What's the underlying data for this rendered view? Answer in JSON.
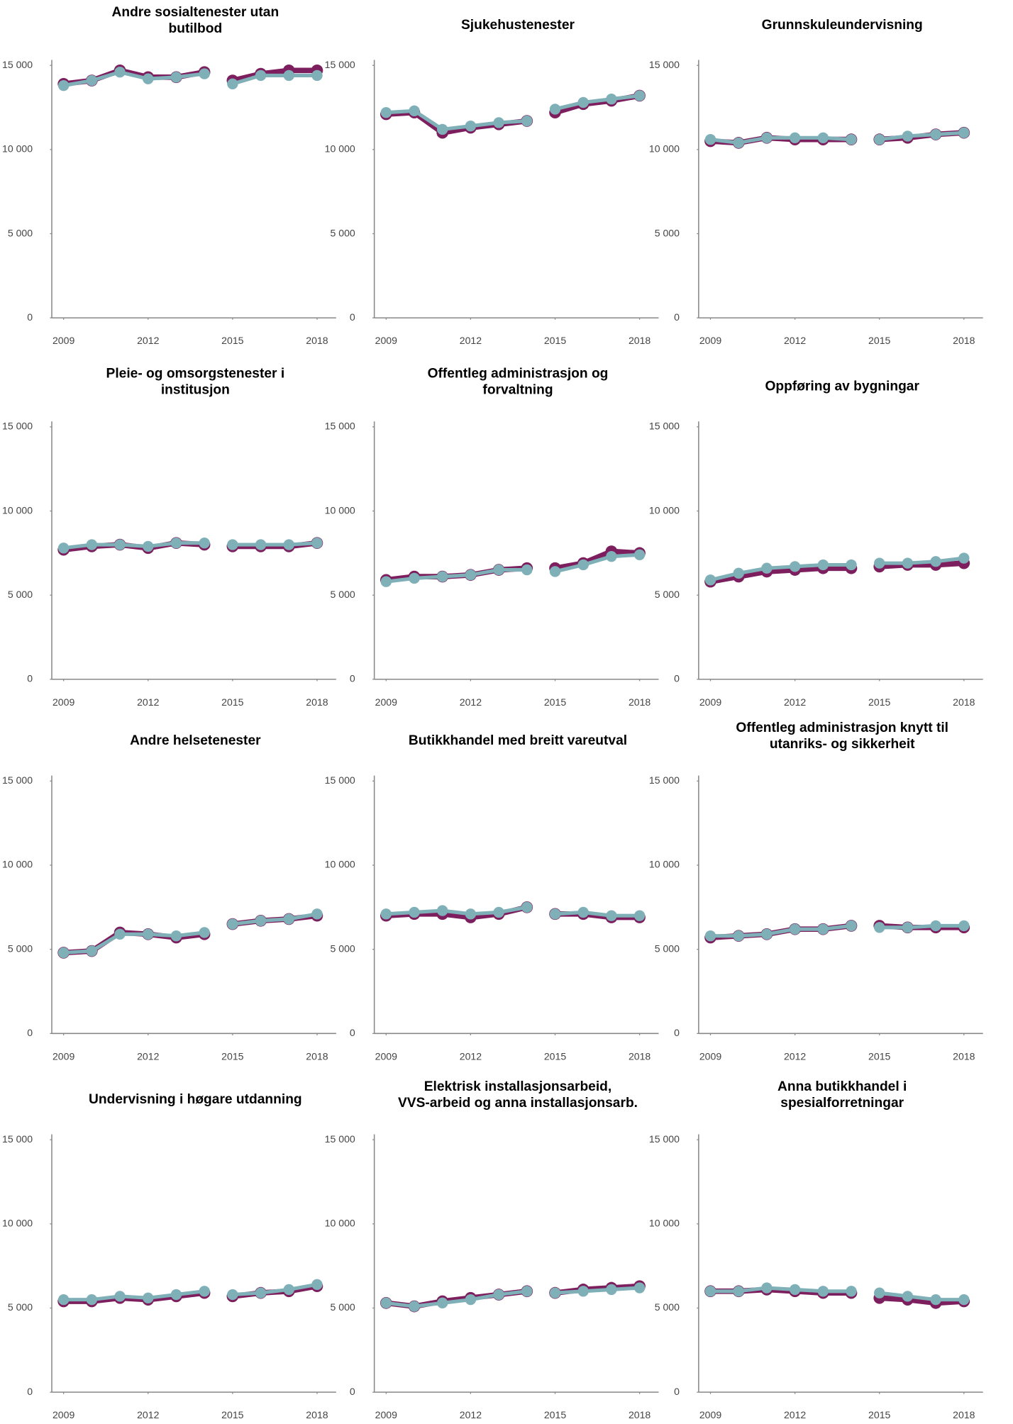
{
  "chart_data": [
    {
      "type": "line",
      "title": [
        "Andre sosialtenester utan",
        "butilbod"
      ],
      "x": [
        2009,
        2010,
        2011,
        2012,
        2013,
        2014,
        2015,
        2016,
        2017,
        2018
      ],
      "break_after": 2014,
      "series": [
        {
          "color": "#7d1f5e",
          "values": [
            13900,
            14100,
            14700,
            14300,
            14300,
            14600,
            14100,
            14500,
            14700,
            14700
          ]
        },
        {
          "color": "#7fb0b8",
          "values": [
            13800,
            14100,
            14600,
            14200,
            14300,
            14500,
            13900,
            14400,
            14400,
            14400
          ]
        }
      ],
      "xlim": [
        2009,
        2018
      ],
      "xticks": [
        2009,
        2012,
        2015,
        2018
      ],
      "ylim": [
        0,
        15000
      ],
      "yticks": [
        0,
        {
          "value": 5000,
          "label": "5 000"
        },
        {
          "value": 10000,
          "label": "10 000"
        },
        {
          "value": 15000,
          "label": "15 000"
        }
      ]
    },
    {
      "type": "line",
      "title": [
        "Sjukehustenester"
      ],
      "x": [
        2009,
        2010,
        2011,
        2012,
        2013,
        2014,
        2015,
        2016,
        2017,
        2018
      ],
      "break_after": 2014,
      "series": [
        {
          "color": "#7d1f5e",
          "values": [
            12100,
            12200,
            11000,
            11300,
            11500,
            11700,
            12200,
            12700,
            12900,
            13200
          ]
        },
        {
          "color": "#7fb0b8",
          "values": [
            12200,
            12300,
            11200,
            11400,
            11600,
            11700,
            12400,
            12800,
            13000,
            13200
          ]
        }
      ],
      "xlim": [
        2009,
        2018
      ],
      "xticks": [
        2009,
        2012,
        2015,
        2018
      ],
      "ylim": [
        0,
        15000
      ],
      "yticks": [
        0,
        {
          "value": 5000,
          "label": "5 000"
        },
        {
          "value": 10000,
          "label": "10 000"
        },
        {
          "value": 15000,
          "label": "15 000"
        }
      ]
    },
    {
      "type": "line",
      "title": [
        "Grunnskuleundervisning"
      ],
      "x": [
        2009,
        2010,
        2011,
        2012,
        2013,
        2014,
        2015,
        2016,
        2017,
        2018
      ],
      "break_after": 2014,
      "series": [
        {
          "color": "#7d1f5e",
          "values": [
            10500,
            10400,
            10700,
            10600,
            10600,
            10600,
            10600,
            10700,
            10900,
            11000
          ]
        },
        {
          "color": "#7fb0b8",
          "values": [
            10600,
            10400,
            10700,
            10700,
            10700,
            10600,
            10600,
            10800,
            10900,
            11000
          ]
        }
      ],
      "xlim": [
        2009,
        2018
      ],
      "xticks": [
        2009,
        2012,
        2015,
        2018
      ],
      "ylim": [
        0,
        15000
      ],
      "yticks": [
        0,
        {
          "value": 5000,
          "label": "5 000"
        },
        {
          "value": 10000,
          "label": "10 000"
        },
        {
          "value": 15000,
          "label": "15 000"
        }
      ]
    },
    {
      "type": "line",
      "title": [
        "Pleie- og omsorgstenester i",
        "institusjon"
      ],
      "x": [
        2009,
        2010,
        2011,
        2012,
        2013,
        2014,
        2015,
        2016,
        2017,
        2018
      ],
      "break_after": 2014,
      "series": [
        {
          "color": "#7d1f5e",
          "values": [
            7700,
            7900,
            8000,
            7800,
            8100,
            8000,
            7900,
            7900,
            7900,
            8100
          ]
        },
        {
          "color": "#7fb0b8",
          "values": [
            7800,
            8000,
            8000,
            7900,
            8100,
            8100,
            8000,
            8000,
            8000,
            8100
          ]
        }
      ],
      "xlim": [
        2009,
        2018
      ],
      "xticks": [
        2009,
        2012,
        2015,
        2018
      ],
      "ylim": [
        0,
        15000
      ],
      "yticks": [
        0,
        {
          "value": 5000,
          "label": "5 000"
        },
        {
          "value": 10000,
          "label": "10 000"
        },
        {
          "value": 15000,
          "label": "15 000"
        }
      ]
    },
    {
      "type": "line",
      "title": [
        "Offentleg administrasjon og",
        "forvaltning"
      ],
      "x": [
        2009,
        2010,
        2011,
        2012,
        2013,
        2014,
        2015,
        2016,
        2017,
        2018
      ],
      "break_after": 2014,
      "series": [
        {
          "color": "#7d1f5e",
          "values": [
            5900,
            6100,
            6100,
            6200,
            6500,
            6600,
            6600,
            6900,
            7600,
            7500
          ]
        },
        {
          "color": "#7fb0b8",
          "values": [
            5800,
            6000,
            6100,
            6200,
            6500,
            6500,
            6400,
            6800,
            7300,
            7400
          ]
        }
      ],
      "xlim": [
        2009,
        2018
      ],
      "xticks": [
        2009,
        2012,
        2015,
        2018
      ],
      "ylim": [
        0,
        15000
      ],
      "yticks": [
        0,
        {
          "value": 5000,
          "label": "5 000"
        },
        {
          "value": 10000,
          "label": "10 000"
        },
        {
          "value": 15000,
          "label": "15 000"
        }
      ]
    },
    {
      "type": "line",
      "title": [
        "Oppføring av bygningar"
      ],
      "x": [
        2009,
        2010,
        2011,
        2012,
        2013,
        2014,
        2015,
        2016,
        2017,
        2018
      ],
      "break_after": 2014,
      "series": [
        {
          "color": "#7d1f5e",
          "values": [
            5800,
            6100,
            6400,
            6500,
            6600,
            6600,
            6700,
            6800,
            6800,
            6900
          ]
        },
        {
          "color": "#7fb0b8",
          "values": [
            5900,
            6300,
            6600,
            6700,
            6800,
            6800,
            6900,
            6900,
            7000,
            7200
          ]
        }
      ],
      "xlim": [
        2009,
        2018
      ],
      "xticks": [
        2009,
        2012,
        2015,
        2018
      ],
      "ylim": [
        0,
        15000
      ],
      "yticks": [
        0,
        {
          "value": 5000,
          "label": "5 000"
        },
        {
          "value": 10000,
          "label": "10 000"
        },
        {
          "value": 15000,
          "label": "15 000"
        }
      ]
    },
    {
      "type": "line",
      "title": [
        "Andre helsetenester"
      ],
      "x": [
        2009,
        2010,
        2011,
        2012,
        2013,
        2014,
        2015,
        2016,
        2017,
        2018
      ],
      "break_after": 2014,
      "series": [
        {
          "color": "#7d1f5e",
          "values": [
            4800,
            4900,
            6000,
            5900,
            5700,
            5900,
            6500,
            6700,
            6800,
            7000
          ]
        },
        {
          "color": "#7fb0b8",
          "values": [
            4800,
            4900,
            5900,
            5900,
            5800,
            6000,
            6500,
            6700,
            6800,
            7100
          ]
        }
      ],
      "xlim": [
        2009,
        2018
      ],
      "xticks": [
        2009,
        2012,
        2015,
        2018
      ],
      "ylim": [
        0,
        15000
      ],
      "yticks": [
        0,
        {
          "value": 5000,
          "label": "5 000"
        },
        {
          "value": 10000,
          "label": "10 000"
        },
        {
          "value": 15000,
          "label": "15 000"
        }
      ]
    },
    {
      "type": "line",
      "title": [
        "Butikkhandel med breitt vareutval"
      ],
      "x": [
        2009,
        2010,
        2011,
        2012,
        2013,
        2014,
        2015,
        2016,
        2017,
        2018
      ],
      "break_after": 2014,
      "series": [
        {
          "color": "#7d1f5e",
          "values": [
            7000,
            7100,
            7100,
            6900,
            7100,
            7500,
            7100,
            7100,
            6900,
            6900
          ]
        },
        {
          "color": "#7fb0b8",
          "values": [
            7100,
            7200,
            7300,
            7100,
            7200,
            7500,
            7100,
            7200,
            7000,
            7000
          ]
        }
      ],
      "xlim": [
        2009,
        2018
      ],
      "xticks": [
        2009,
        2012,
        2015,
        2018
      ],
      "ylim": [
        0,
        15000
      ],
      "yticks": [
        0,
        {
          "value": 5000,
          "label": "5 000"
        },
        {
          "value": 10000,
          "label": "10 000"
        },
        {
          "value": 15000,
          "label": "15 000"
        }
      ]
    },
    {
      "type": "line",
      "title": [
        "Offentleg administrasjon knytt til",
        "utanriks- og sikkerheit"
      ],
      "x": [
        2009,
        2010,
        2011,
        2012,
        2013,
        2014,
        2015,
        2016,
        2017,
        2018
      ],
      "break_after": 2014,
      "series": [
        {
          "color": "#7d1f5e",
          "values": [
            5700,
            5800,
            5900,
            6200,
            6200,
            6400,
            6400,
            6300,
            6300,
            6300
          ]
        },
        {
          "color": "#7fb0b8",
          "values": [
            5800,
            5800,
            5900,
            6200,
            6200,
            6400,
            6300,
            6300,
            6400,
            6400
          ]
        }
      ],
      "xlim": [
        2009,
        2018
      ],
      "xticks": [
        2009,
        2012,
        2015,
        2018
      ],
      "ylim": [
        0,
        15000
      ],
      "yticks": [
        0,
        {
          "value": 5000,
          "label": "5 000"
        },
        {
          "value": 10000,
          "label": "10 000"
        },
        {
          "value": 15000,
          "label": "15 000"
        }
      ]
    },
    {
      "type": "line",
      "title": [
        "Undervisning i høgare utdanning"
      ],
      "x": [
        2009,
        2010,
        2011,
        2012,
        2013,
        2014,
        2015,
        2016,
        2017,
        2018
      ],
      "break_after": 2014,
      "series": [
        {
          "color": "#7d1f5e",
          "values": [
            5400,
            5400,
            5600,
            5500,
            5700,
            5900,
            5700,
            5900,
            6000,
            6300
          ]
        },
        {
          "color": "#7fb0b8",
          "values": [
            5500,
            5500,
            5700,
            5600,
            5800,
            6000,
            5800,
            5900,
            6100,
            6400
          ]
        }
      ],
      "xlim": [
        2009,
        2018
      ],
      "xticks": [
        2009,
        2012,
        2015,
        2018
      ],
      "ylim": [
        0,
        15000
      ],
      "yticks": [
        0,
        {
          "value": 5000,
          "label": "5 000"
        },
        {
          "value": 10000,
          "label": "10 000"
        },
        {
          "value": 15000,
          "label": "15 000"
        }
      ]
    },
    {
      "type": "line",
      "title": [
        "Elektrisk installasjonsarbeid,",
        "VVS-arbeid og anna installasjonsarb."
      ],
      "x": [
        2009,
        2010,
        2011,
        2012,
        2013,
        2014,
        2015,
        2016,
        2017,
        2018
      ],
      "break_after": 2014,
      "series": [
        {
          "color": "#7d1f5e",
          "values": [
            5300,
            5100,
            5400,
            5600,
            5800,
            6000,
            5900,
            6100,
            6200,
            6300
          ]
        },
        {
          "color": "#7fb0b8",
          "values": [
            5300,
            5100,
            5300,
            5500,
            5800,
            6000,
            5900,
            6000,
            6100,
            6200
          ]
        }
      ],
      "xlim": [
        2009,
        2018
      ],
      "xticks": [
        2009,
        2012,
        2015,
        2018
      ],
      "ylim": [
        0,
        15000
      ],
      "yticks": [
        0,
        {
          "value": 5000,
          "label": "5 000"
        },
        {
          "value": 10000,
          "label": "10 000"
        },
        {
          "value": 15000,
          "label": "15 000"
        }
      ]
    },
    {
      "type": "line",
      "title": [
        "Anna butikkhandel i",
        "spesialforretningar"
      ],
      "x": [
        2009,
        2010,
        2011,
        2012,
        2013,
        2014,
        2015,
        2016,
        2017,
        2018
      ],
      "break_after": 2014,
      "series": [
        {
          "color": "#7d1f5e",
          "values": [
            6000,
            6000,
            6100,
            6000,
            5900,
            5900,
            5600,
            5500,
            5300,
            5400
          ]
        },
        {
          "color": "#7fb0b8",
          "values": [
            6000,
            6000,
            6200,
            6100,
            6000,
            6000,
            5900,
            5700,
            5500,
            5500
          ]
        }
      ],
      "xlim": [
        2009,
        2018
      ],
      "xticks": [
        2009,
        2012,
        2015,
        2018
      ],
      "ylim": [
        0,
        15000
      ],
      "yticks": [
        0,
        {
          "value": 5000,
          "label": "5 000"
        },
        {
          "value": 10000,
          "label": "10 000"
        },
        {
          "value": 15000,
          "label": "15 000"
        }
      ]
    }
  ]
}
